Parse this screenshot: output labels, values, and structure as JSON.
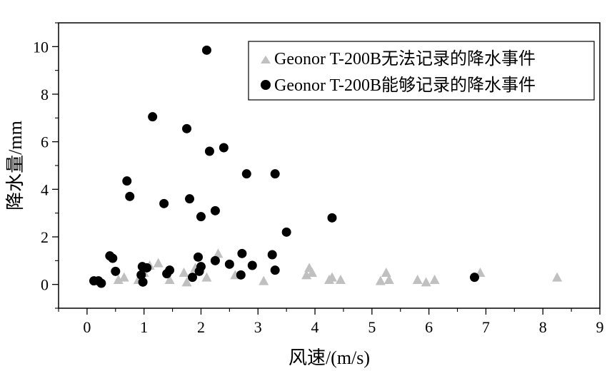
{
  "chart_data": {
    "type": "scatter",
    "xlabel": "风速/(m/s)",
    "ylabel": "降水量/mm",
    "xlim": [
      -0.5,
      9
    ],
    "ylim": [
      -1,
      11
    ],
    "xticks": [
      0,
      1,
      2,
      3,
      4,
      5,
      6,
      7,
      8,
      9
    ],
    "yticks": [
      0,
      2,
      4,
      6,
      8,
      10
    ],
    "grid": false,
    "legend_position": "top-right",
    "series": [
      {
        "name": "Geonor T-200B无法记录的降水事件",
        "marker": "triangle",
        "color": "#c0c0c0",
        "points": [
          [
            0.55,
            0.2
          ],
          [
            0.65,
            0.3
          ],
          [
            0.9,
            0.2
          ],
          [
            1.0,
            0.5
          ],
          [
            1.1,
            0.8
          ],
          [
            1.25,
            0.9
          ],
          [
            1.45,
            0.2
          ],
          [
            1.7,
            0.5
          ],
          [
            1.75,
            0.1
          ],
          [
            1.9,
            0.7
          ],
          [
            2.1,
            0.3
          ],
          [
            2.3,
            1.3
          ],
          [
            2.6,
            0.4
          ],
          [
            3.1,
            0.15
          ],
          [
            3.85,
            0.4
          ],
          [
            3.9,
            0.7
          ],
          [
            3.95,
            0.5
          ],
          [
            4.25,
            0.2
          ],
          [
            4.3,
            0.3
          ],
          [
            4.45,
            0.2
          ],
          [
            5.15,
            0.15
          ],
          [
            5.25,
            0.5
          ],
          [
            5.3,
            0.2
          ],
          [
            5.8,
            0.2
          ],
          [
            5.95,
            0.1
          ],
          [
            6.1,
            0.2
          ],
          [
            6.9,
            0.5
          ],
          [
            8.25,
            0.3
          ]
        ]
      },
      {
        "name": "Geonor T-200B能够记录的降水事件",
        "marker": "circle",
        "color": "#000000",
        "points": [
          [
            0.12,
            0.15
          ],
          [
            0.2,
            0.15
          ],
          [
            0.25,
            0.05
          ],
          [
            0.4,
            1.2
          ],
          [
            0.45,
            1.1
          ],
          [
            0.5,
            0.55
          ],
          [
            0.7,
            4.35
          ],
          [
            0.75,
            3.7
          ],
          [
            0.95,
            0.4
          ],
          [
            0.97,
            0.75
          ],
          [
            0.98,
            0.1
          ],
          [
            1.05,
            0.7
          ],
          [
            1.15,
            7.05
          ],
          [
            1.35,
            3.4
          ],
          [
            1.4,
            0.45
          ],
          [
            1.45,
            0.6
          ],
          [
            1.75,
            6.55
          ],
          [
            1.8,
            3.6
          ],
          [
            1.85,
            0.3
          ],
          [
            1.95,
            1.15
          ],
          [
            1.97,
            0.55
          ],
          [
            2.0,
            0.75
          ],
          [
            2.0,
            2.85
          ],
          [
            2.1,
            9.85
          ],
          [
            2.15,
            5.6
          ],
          [
            2.25,
            1.0
          ],
          [
            2.25,
            3.1
          ],
          [
            2.4,
            5.75
          ],
          [
            2.5,
            0.85
          ],
          [
            2.7,
            0.4
          ],
          [
            2.72,
            1.3
          ],
          [
            2.8,
            4.65
          ],
          [
            2.9,
            0.8
          ],
          [
            3.25,
            1.25
          ],
          [
            3.3,
            0.6
          ],
          [
            3.3,
            4.65
          ],
          [
            3.5,
            2.2
          ],
          [
            4.3,
            2.8
          ],
          [
            6.8,
            0.3
          ]
        ]
      }
    ]
  }
}
